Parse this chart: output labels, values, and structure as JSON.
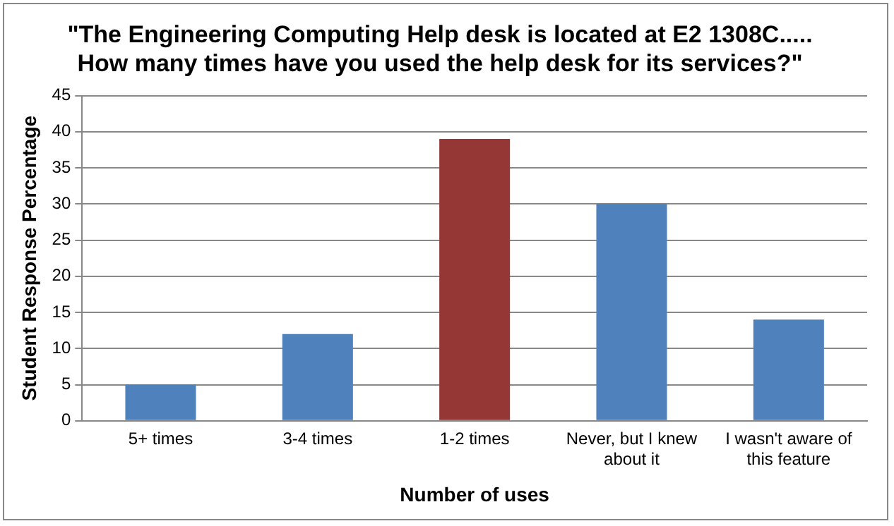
{
  "chart_data": {
    "type": "bar",
    "title": "\"The Engineering Computing Help desk is located at E2 1308C..... How many times have you used the help desk for its services?\"",
    "xlabel": "Number of uses",
    "ylabel": "Student Response Percentage",
    "categories": [
      "5+ times",
      "3-4 times",
      "1-2 times",
      "Never, but I knew about it",
      "I wasn't aware of this feature"
    ],
    "values": [
      5,
      12,
      39,
      30,
      14
    ],
    "colors": [
      "#4f81bd",
      "#4f81bd",
      "#953735",
      "#4f81bd",
      "#4f81bd"
    ],
    "ylim": [
      0,
      45
    ],
    "yticks": [
      0,
      5,
      10,
      15,
      20,
      25,
      30,
      35,
      40,
      45
    ],
    "grid": "y",
    "legend": false
  }
}
